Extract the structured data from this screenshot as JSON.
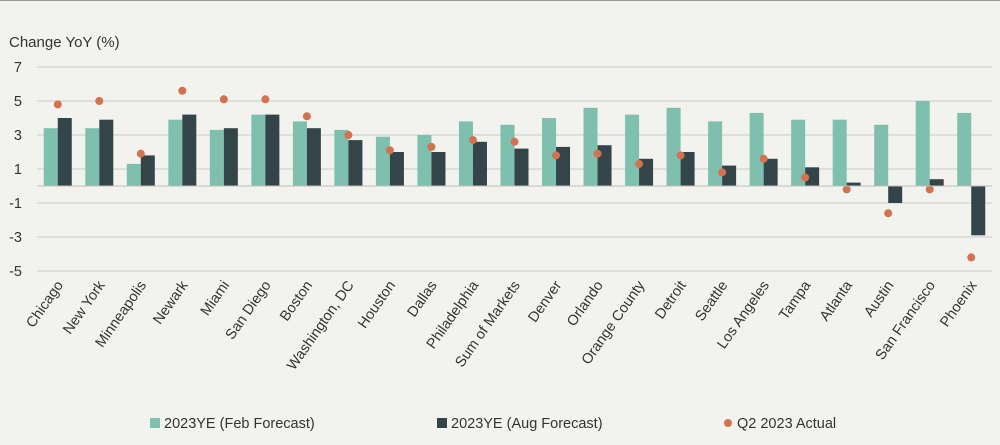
{
  "chart_data": {
    "type": "bar",
    "ylabel": "Change YoY (%)",
    "ylim": [
      -5,
      7
    ],
    "yticks": [
      7,
      5,
      3,
      1,
      -1,
      -3,
      -5
    ],
    "categories": [
      "Chicago",
      "New York",
      "Minneapolis",
      "Newark",
      "Miami",
      "San Diego",
      "Boston",
      "Washington, DC",
      "Houston",
      "Dallas",
      "Philadelphia",
      "Sum of Markets",
      "Denver",
      "Orlando",
      "Orange County",
      "Detroit",
      "Seattle",
      "Los Angeles",
      "Tampa",
      "Atlanta",
      "Austin",
      "San Francisco",
      "Phoenix"
    ],
    "series": [
      {
        "name": "2023YE (Feb Forecast)",
        "kind": "bar",
        "color": "#7fbfae",
        "values": [
          3.4,
          3.4,
          1.3,
          3.9,
          3.3,
          4.2,
          3.8,
          3.3,
          2.9,
          3.0,
          3.8,
          3.6,
          4.0,
          4.6,
          4.2,
          4.6,
          3.8,
          4.3,
          3.9,
          3.9,
          3.6,
          5.0,
          4.3
        ]
      },
      {
        "name": "2023YE (Aug Forecast)",
        "kind": "bar",
        "color": "#34454a",
        "values": [
          4.0,
          3.9,
          1.8,
          4.2,
          3.4,
          4.2,
          3.4,
          2.7,
          2.0,
          2.0,
          2.6,
          2.2,
          2.3,
          2.4,
          1.6,
          2.0,
          1.2,
          1.6,
          1.1,
          0.2,
          -1.0,
          0.4,
          -2.9
        ]
      },
      {
        "name": "Q2 2023 Actual",
        "kind": "point",
        "color": "#d4714f",
        "values": [
          4.8,
          5.0,
          1.9,
          5.6,
          5.1,
          5.1,
          4.1,
          3.0,
          2.1,
          2.3,
          2.7,
          2.6,
          1.8,
          1.9,
          1.3,
          1.8,
          0.8,
          1.6,
          0.5,
          -0.2,
          -1.6,
          -0.2,
          -4.2
        ]
      }
    ]
  }
}
